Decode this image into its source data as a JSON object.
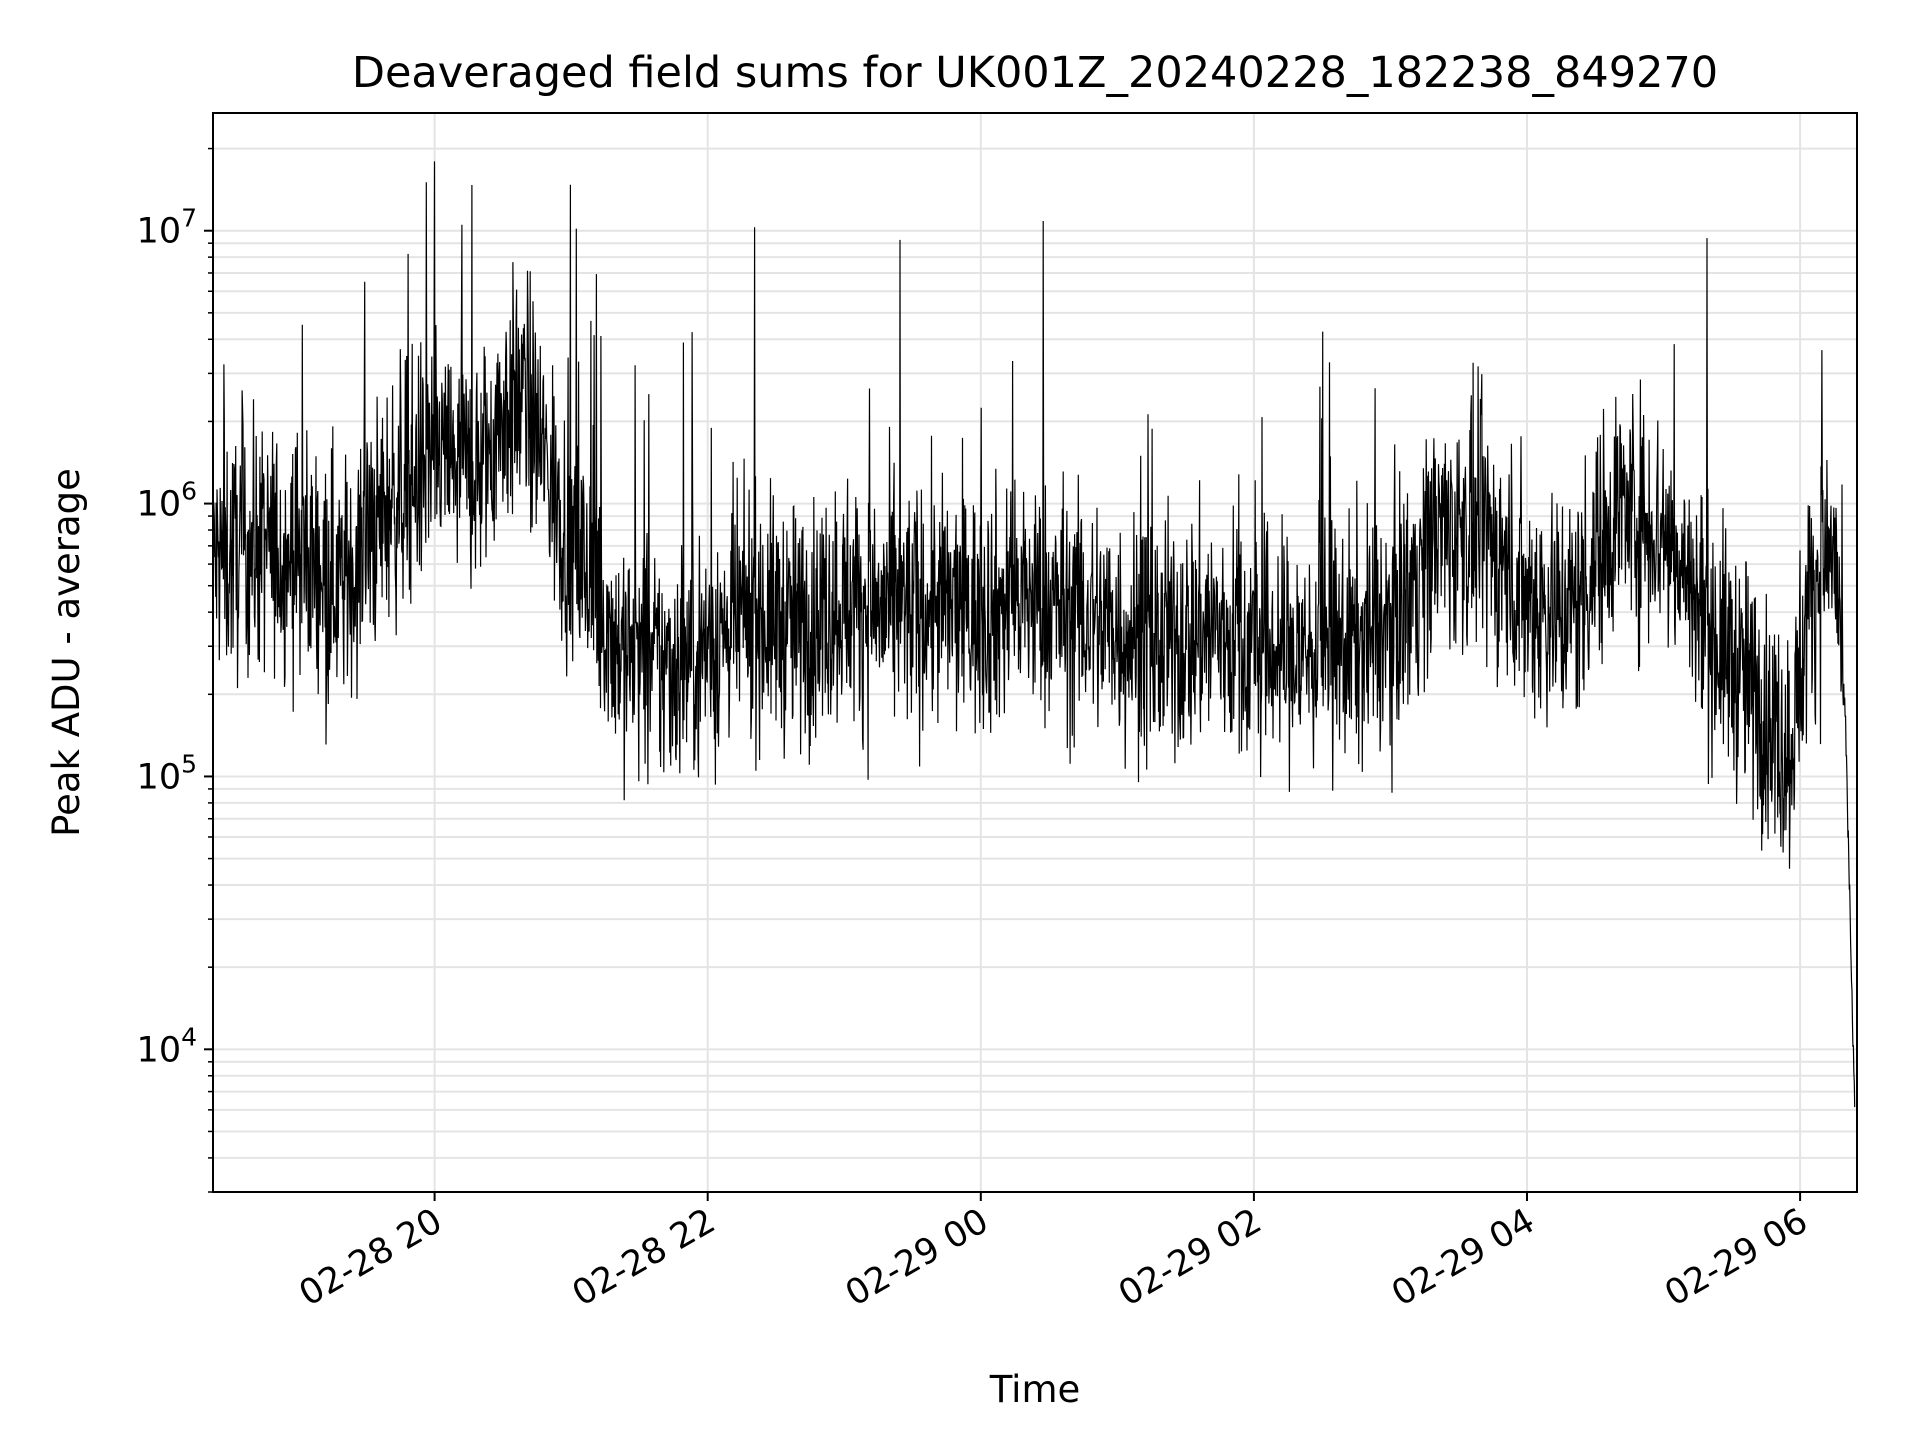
{
  "chart_data": {
    "type": "line",
    "title": "Deaveraged field sums for UK001Z_20240228_182238_849270",
    "xlabel": "Time",
    "ylabel": "Peak ADU - average",
    "xlim": [
      "2024-02-28 18:22:38",
      "2024-02-29 06:25:00"
    ],
    "ylim": [
      3000,
      27000000
    ],
    "yscale": "log",
    "grid": "both, major and minor",
    "legend": "none",
    "x_tick_labels": [
      "02-28 20",
      "02-28 22",
      "02-29 00",
      "02-29 02",
      "02-29 04",
      "02-29 06"
    ],
    "x_tick_times": [
      "2024-02-28 20:00",
      "2024-02-28 22:00",
      "2024-02-29 00:00",
      "2024-02-29 02:00",
      "2024-02-29 04:00",
      "2024-02-29 06:00"
    ],
    "y_tick_labels": [
      {
        "base": "10",
        "exp": "4",
        "value": 10000
      },
      {
        "base": "10",
        "exp": "5",
        "value": 100000
      },
      {
        "base": "10",
        "exp": "6",
        "value": 1000000
      },
      {
        "base": "10",
        "exp": "7",
        "value": 10000000
      }
    ],
    "line_color": "#000000",
    "series": [
      {
        "x": [
          "2024-02-28 18:23",
          "2024-02-28 18:40",
          "2024-02-28 19:00",
          "2024-02-28 19:10",
          "2024-02-28 19:20",
          "2024-02-28 19:40",
          "2024-02-28 20:00",
          "2024-02-28 20:20",
          "2024-02-28 20:30",
          "2024-02-28 20:40",
          "2024-02-28 20:50",
          "2024-02-28 21:00",
          "2024-02-28 21:10",
          "2024-02-28 21:20",
          "2024-02-28 21:40",
          "2024-02-28 22:00",
          "2024-02-28 22:20",
          "2024-02-28 22:40",
          "2024-02-28 23:00",
          "2024-02-28 23:20",
          "2024-02-28 23:40",
          "2024-02-29 00:00",
          "2024-02-29 00:20",
          "2024-02-29 00:40",
          "2024-02-29 01:00",
          "2024-02-29 01:20",
          "2024-02-29 01:40",
          "2024-02-29 02:00",
          "2024-02-29 02:20",
          "2024-02-29 02:40",
          "2024-02-29 03:00",
          "2024-02-29 03:20",
          "2024-02-29 03:40",
          "2024-02-29 04:00",
          "2024-02-29 04:20",
          "2024-02-29 04:40",
          "2024-02-29 05:00",
          "2024-02-29 05:20",
          "2024-02-29 05:40",
          "2024-02-29 05:55",
          "2024-02-29 06:05",
          "2024-02-29 06:15",
          "2024-02-29 06:20",
          "2024-02-29 06:24"
        ],
        "y": [
          600000,
          700000,
          650000,
          600000,
          500000,
          1000000,
          1500000,
          1300000,
          2200000,
          2500000,
          1300000,
          700000,
          500000,
          300000,
          250000,
          300000,
          400000,
          350000,
          450000,
          400000,
          420000,
          400000,
          450000,
          400000,
          350000,
          300000,
          350000,
          300000,
          280000,
          300000,
          350000,
          800000,
          800000,
          450000,
          400000,
          1000000,
          800000,
          350000,
          200000,
          120000,
          500000,
          700000,
          150000,
          6000
        ]
      }
    ]
  }
}
